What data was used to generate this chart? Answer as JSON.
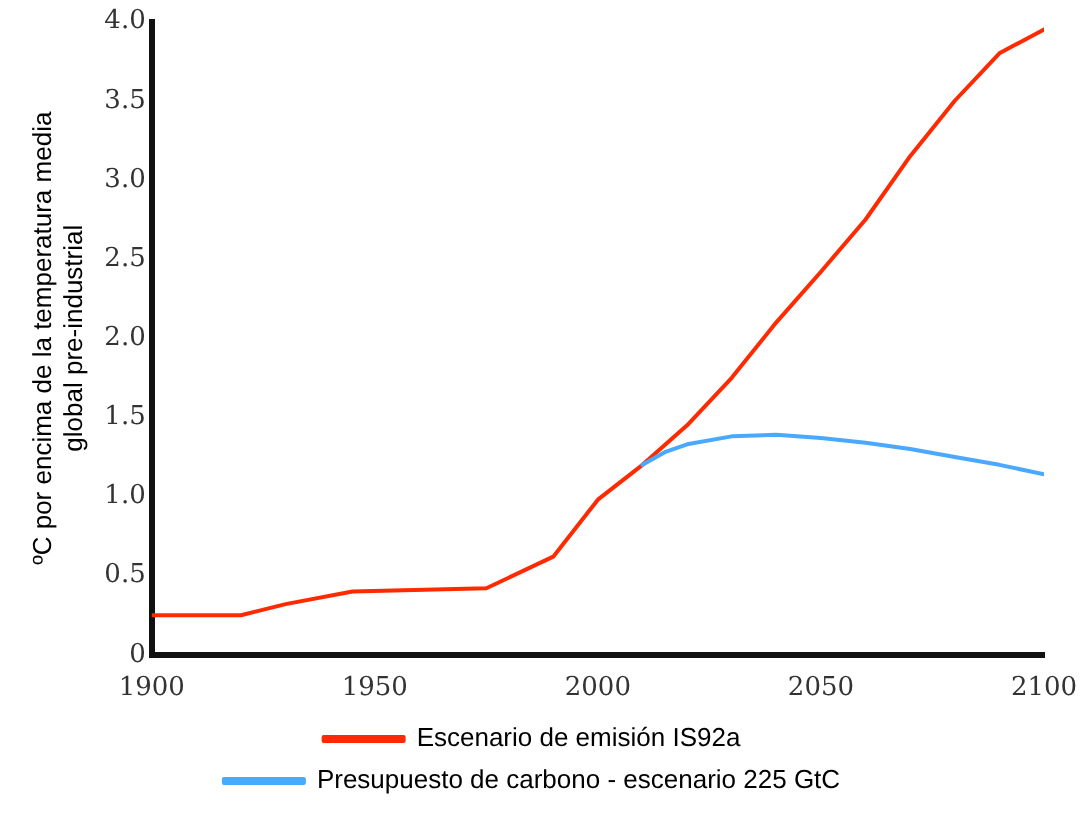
{
  "chart_data": {
    "type": "line",
    "ylabel": "ºC por encima de la temperatura media\nglobal pre-industrial",
    "xlim": [
      1900,
      2100
    ],
    "xticks": [
      1900,
      1950,
      2000,
      2050,
      2100
    ],
    "ylim": [
      0,
      4
    ],
    "yticks": [
      0,
      0.5,
      {
        "value": 1,
        "label": "1.0"
      },
      1.5,
      {
        "value": 2,
        "label": "2.0"
      },
      2.5,
      {
        "value": 3,
        "label": "3.0"
      },
      3.5,
      {
        "value": 4,
        "label": "4.0"
      }
    ],
    "grid": false,
    "legend": "bottom",
    "marker": "none",
    "line_style": "solid",
    "series": [
      {
        "name": "Presupuesto de carbono - escenario 225 GtC",
        "color": "#4aa8ff",
        "x": [
          2010,
          2015,
          2020,
          2030,
          2040,
          2050,
          2060,
          2070,
          2080,
          2090,
          2100
        ],
        "values": [
          1.2,
          1.28,
          1.33,
          1.38,
          1.39,
          1.37,
          1.34,
          1.3,
          1.25,
          1.2,
          1.14
        ]
      },
      {
        "name": "Escenario de emisión IS92a",
        "color": "#ff2a00",
        "x": [
          1900,
          1920,
          1930,
          1945,
          1975,
          1990,
          2000,
          2010,
          2020,
          2030,
          2040,
          2050,
          2060,
          2070,
          2080,
          2090,
          2100
        ],
        "values": [
          0.25,
          0.25,
          0.32,
          0.4,
          0.42,
          0.62,
          0.98,
          1.2,
          1.45,
          1.75,
          2.1,
          2.42,
          2.75,
          3.15,
          3.5,
          3.8,
          3.95
        ]
      }
    ]
  }
}
